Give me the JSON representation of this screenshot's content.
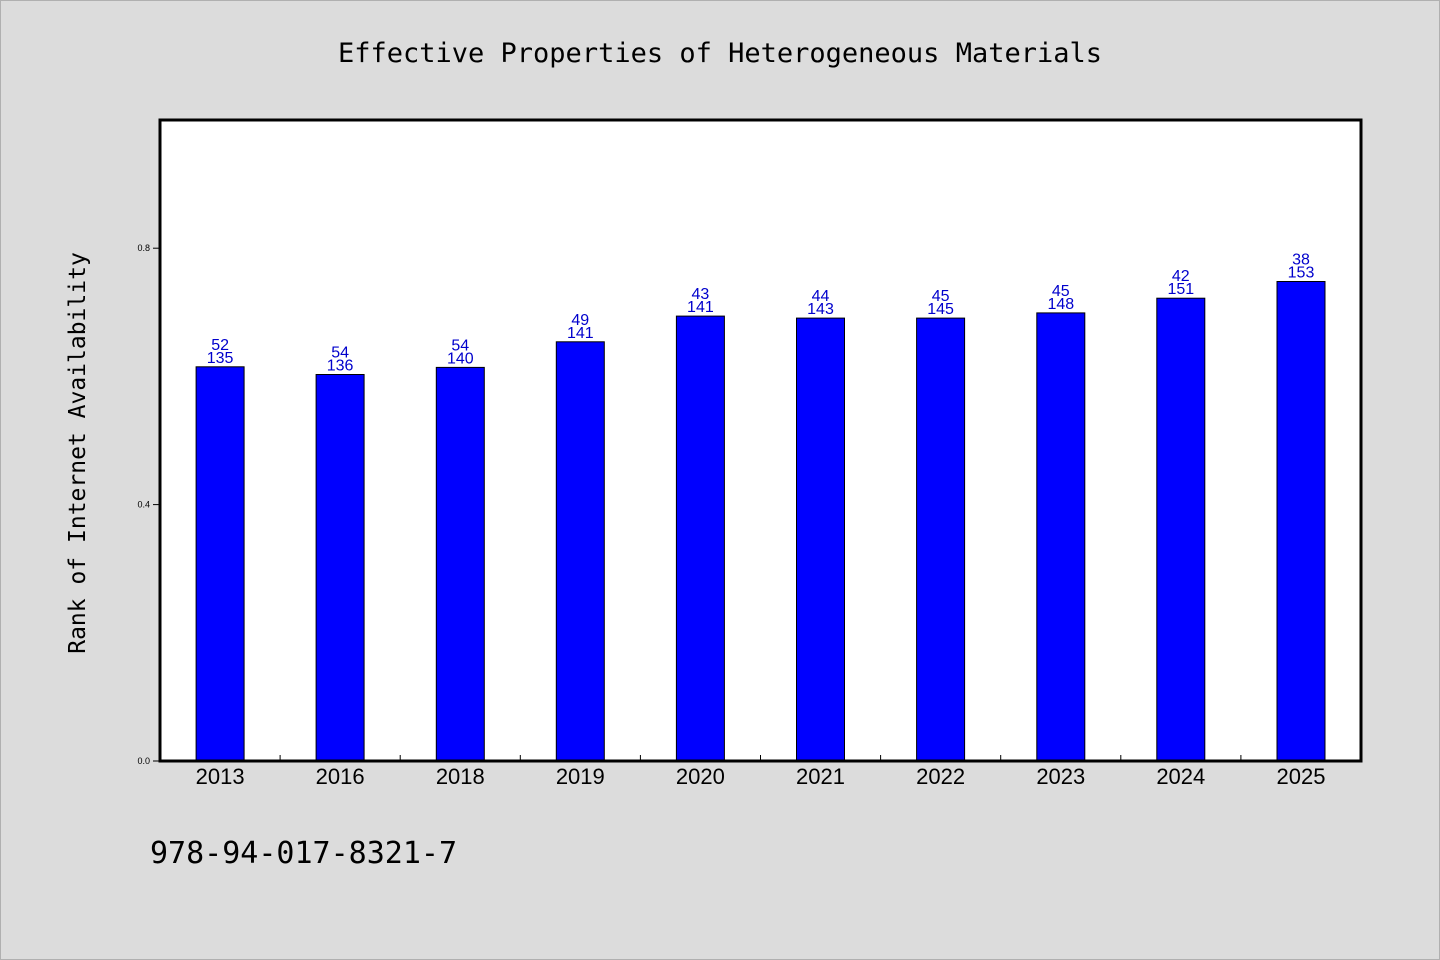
{
  "chart_data": {
    "type": "bar",
    "title": "Effective Properties of Heterogeneous Materials",
    "xlabel": "",
    "ylabel": "Rank of Internet Availability",
    "categories": [
      "2013",
      "2016",
      "2018",
      "2019",
      "2020",
      "2021",
      "2022",
      "2023",
      "2024",
      "2025"
    ],
    "series": [
      {
        "values": [
          0.615,
          0.603,
          0.614,
          0.654,
          0.694,
          0.691,
          0.691,
          0.699,
          0.722,
          0.748
        ]
      }
    ],
    "bar_labels_top": [
      "52",
      "54",
      "54",
      "49",
      "43",
      "44",
      "45",
      "45",
      "42",
      "38"
    ],
    "bar_labels_bottom": [
      "135",
      "136",
      "140",
      "141",
      "141",
      "143",
      "145",
      "148",
      "151",
      "153"
    ],
    "yticks": [
      "0.0",
      "0.4",
      "0.8"
    ],
    "ylim": [
      0,
      1.0
    ],
    "grid": false,
    "legend": "none",
    "colors": {
      "bar": "#0000ff",
      "label": "#0000cc",
      "background": "#dcdcdc",
      "plot_bg": "#ffffff"
    }
  },
  "footnote": "978-94-017-8321-7"
}
